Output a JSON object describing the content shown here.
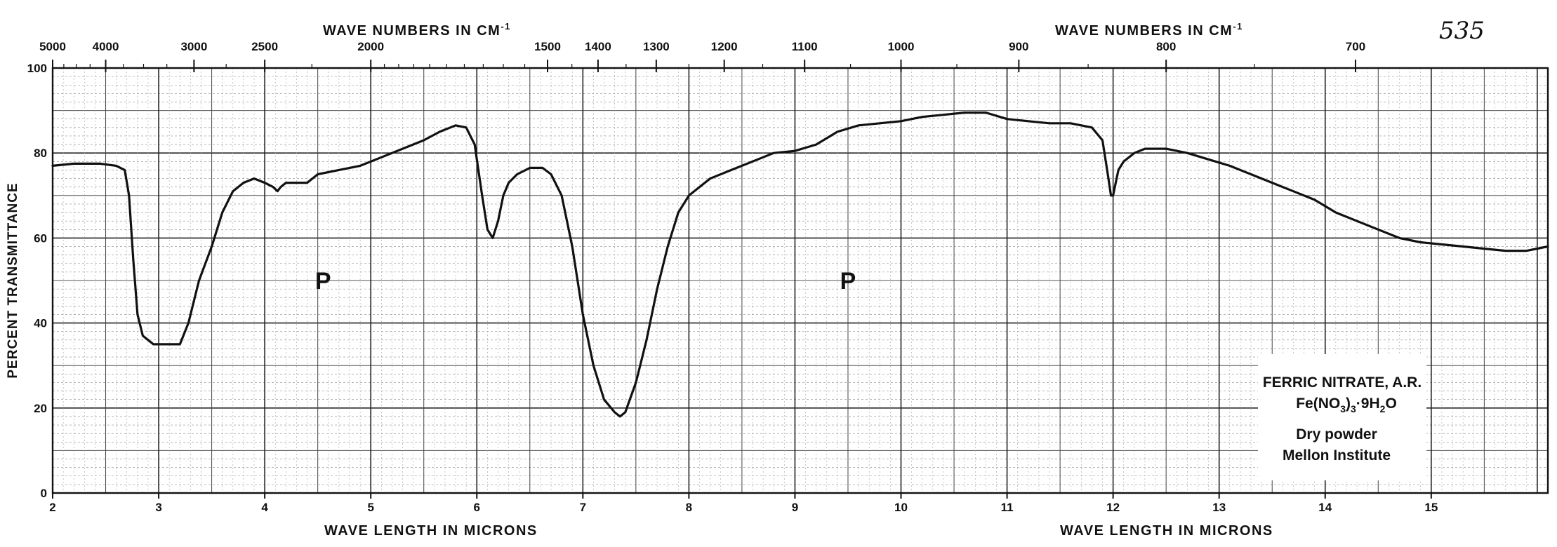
{
  "chart_data": {
    "type": "line",
    "page_number": "535",
    "top_axis_title": "WAVE NUMBERS IN CM-1",
    "top_axis_title_left": "WAVE NUMBERS IN CM",
    "top_axis_title_right": "WAVE NUMBERS IN CM",
    "top_axis_superscript": "-1",
    "xlabel": "WAVE LENGTH IN MICRONS",
    "ylabel": "PERCENT TRANSMITTANCE",
    "xlim": [
      2,
      16.1
    ],
    "ylim": [
      0,
      100
    ],
    "grid": true,
    "x_ticks": [
      2,
      3,
      4,
      5,
      6,
      7,
      8,
      9,
      10,
      11,
      12,
      13,
      14,
      15
    ],
    "x_tick_labels": [
      "2",
      "3",
      "4",
      "5",
      "6",
      "7",
      "8",
      "9",
      "10",
      "11",
      "12",
      "13",
      "14",
      "15"
    ],
    "y_ticks": [
      0,
      20,
      40,
      60,
      80,
      100
    ],
    "y_tick_labels": [
      "0",
      "20",
      "40",
      "60",
      "80",
      "100"
    ],
    "wavenumber_ticks": [
      {
        "label": "5000",
        "wavelength": 2.0
      },
      {
        "label": "4000",
        "wavelength": 2.5
      },
      {
        "label": "3000",
        "wavelength": 3.333
      },
      {
        "label": "2500",
        "wavelength": 4.0
      },
      {
        "label": "2000",
        "wavelength": 5.0
      },
      {
        "label": "1500",
        "wavelength": 6.667
      },
      {
        "label": "1400",
        "wavelength": 7.143
      },
      {
        "label": "1300",
        "wavelength": 7.692
      },
      {
        "label": "1200",
        "wavelength": 8.333
      },
      {
        "label": "1100",
        "wavelength": 9.091
      },
      {
        "label": "1000",
        "wavelength": 10.0
      },
      {
        "label": "900",
        "wavelength": 11.111
      },
      {
        "label": "800",
        "wavelength": 12.5
      },
      {
        "label": "700",
        "wavelength": 14.286
      }
    ],
    "annotations": [
      {
        "text": "P",
        "x": 4.55,
        "y": 50
      },
      {
        "text": "P",
        "x": 9.5,
        "y": 50
      }
    ],
    "legend_box": {
      "position": "bottom-right",
      "line1": "FERRIC NITRATE, A.R.",
      "formula_parts": [
        "Fe(NO",
        "3",
        ")",
        "3",
        "·9H",
        "2",
        "O"
      ],
      "line3": "Dry powder",
      "line4": "Mellon Institute"
    },
    "series": [
      {
        "x": [
          2.0,
          2.2,
          2.45,
          2.6,
          2.68,
          2.72,
          2.76,
          2.8,
          2.85,
          2.95,
          3.05,
          3.15,
          3.2,
          3.28,
          3.38,
          3.5,
          3.6,
          3.7,
          3.8,
          3.9,
          4.0,
          4.08,
          4.12,
          4.15,
          4.2,
          4.3,
          4.4,
          4.5,
          4.7,
          4.9,
          5.1,
          5.3,
          5.5,
          5.65,
          5.8,
          5.9,
          5.98,
          6.05,
          6.1,
          6.15,
          6.2,
          6.25,
          6.3,
          6.38,
          6.5,
          6.62,
          6.7,
          6.8,
          6.9,
          7.0,
          7.1,
          7.2,
          7.3,
          7.35,
          7.4,
          7.5,
          7.6,
          7.7,
          7.8,
          7.9,
          8.0,
          8.2,
          8.4,
          8.6,
          8.8,
          9.0,
          9.2,
          9.4,
          9.6,
          9.8,
          10.0,
          10.2,
          10.4,
          10.6,
          10.8,
          11.0,
          11.2,
          11.4,
          11.6,
          11.8,
          11.9,
          11.95,
          11.98,
          12.0,
          12.05,
          12.1,
          12.2,
          12.3,
          12.5,
          12.7,
          12.9,
          13.1,
          13.3,
          13.5,
          13.7,
          13.9,
          14.1,
          14.3,
          14.5,
          14.7,
          14.9,
          15.1,
          15.3,
          15.5,
          15.7,
          15.9,
          16.1
        ],
        "y": [
          77,
          77.5,
          77.5,
          77,
          76,
          70,
          55,
          42,
          37,
          35,
          35,
          35,
          35,
          40,
          50,
          58,
          66,
          71,
          73,
          74,
          73,
          72,
          71,
          72,
          73,
          73,
          73,
          75,
          76,
          77,
          79,
          81,
          83,
          85,
          86.5,
          86,
          82,
          70,
          62,
          60,
          64,
          70,
          73,
          75,
          76.5,
          76.5,
          75,
          70,
          58,
          42,
          30,
          22,
          19,
          18,
          19,
          26,
          36,
          48,
          58,
          66,
          70,
          74,
          76,
          78,
          80,
          80.5,
          82,
          85,
          86.5,
          87,
          87.5,
          88.5,
          89,
          89.5,
          89.5,
          88,
          87.5,
          87,
          87,
          86,
          83,
          75,
          70,
          70,
          76,
          78,
          80,
          81,
          81,
          80,
          78.5,
          77,
          75,
          73,
          71,
          69,
          66,
          64,
          62,
          60,
          59,
          58.5,
          58,
          57.5,
          57,
          57,
          58
        ]
      }
    ]
  }
}
